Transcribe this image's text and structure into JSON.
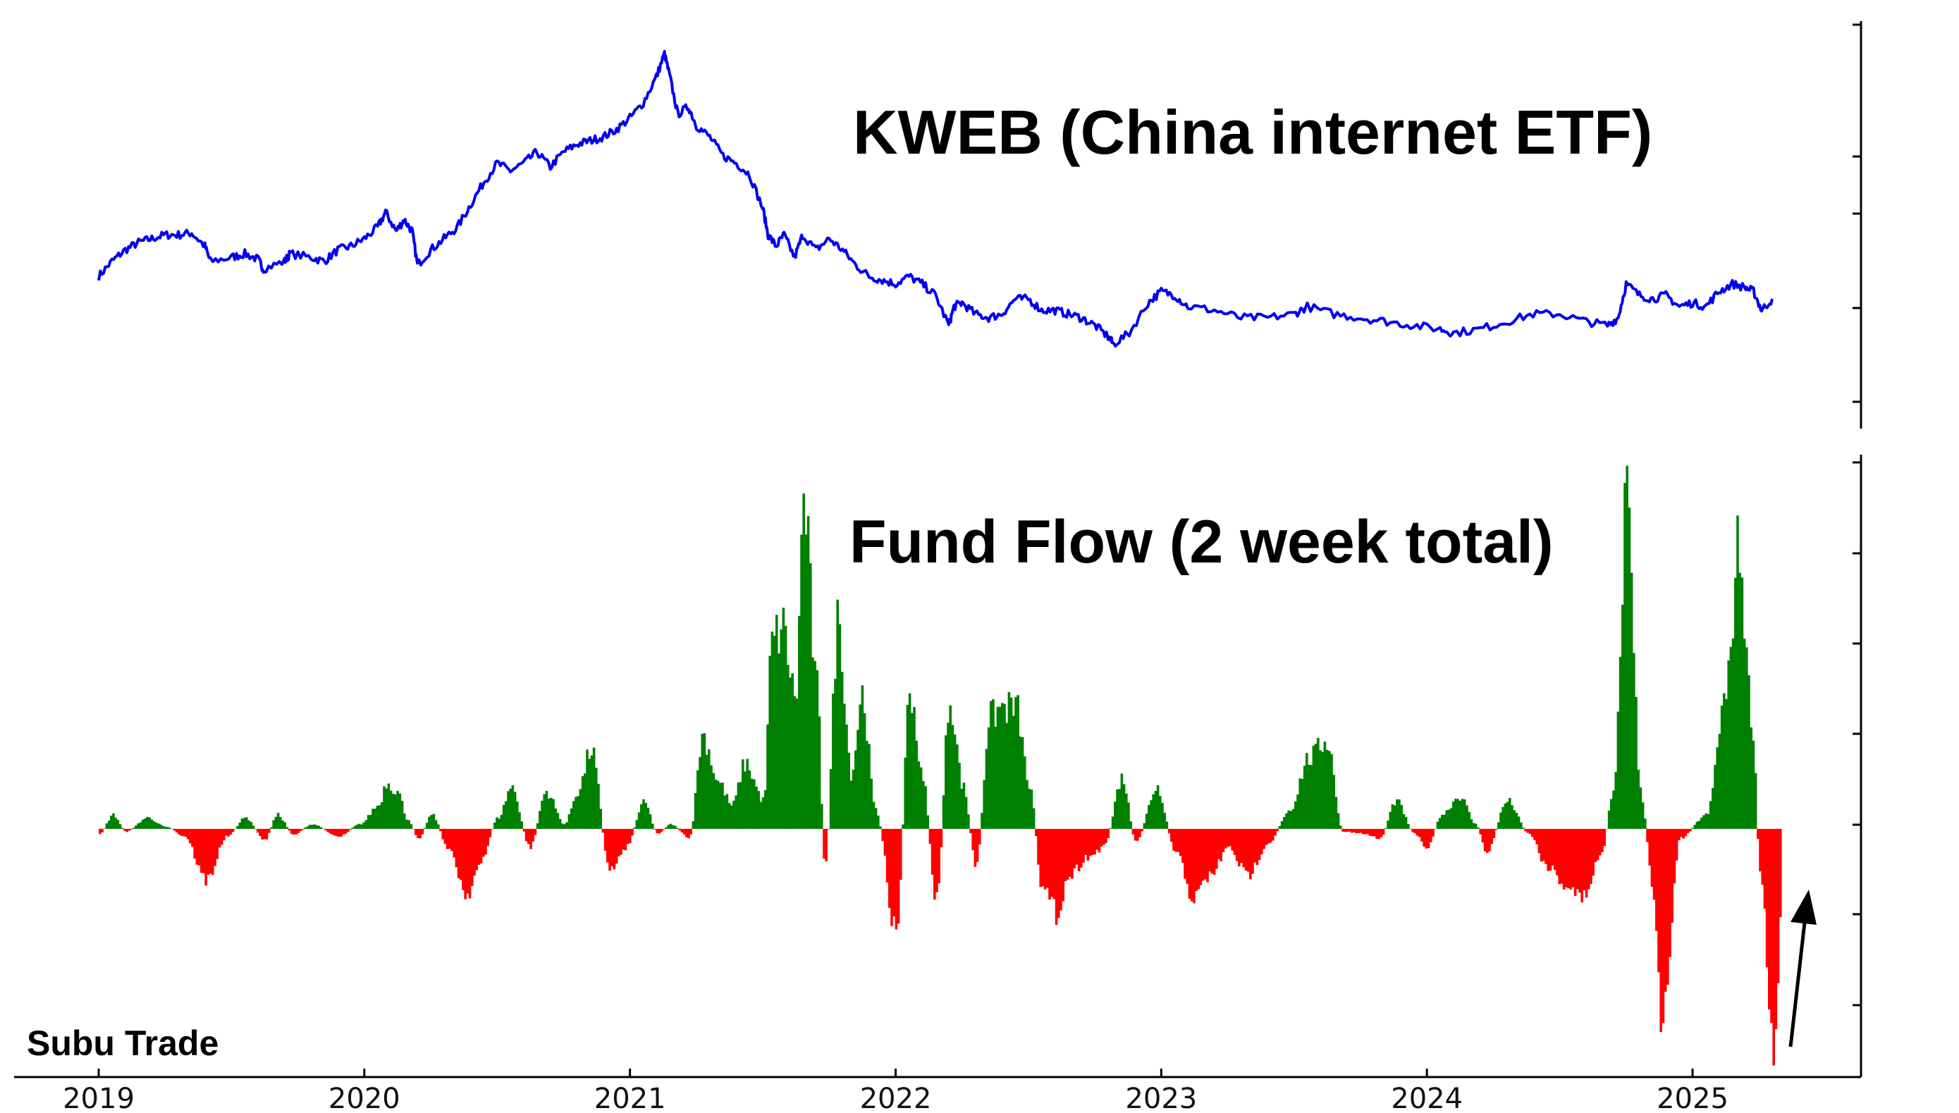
{
  "chart_data": [
    {
      "type": "line",
      "title": "KWEB (China internet ETF)",
      "series_color": "#0000ee",
      "x_axis_labels": [
        "2019",
        "2020",
        "2021",
        "2022",
        "2023",
        "2024",
        "2025"
      ],
      "x_range": [
        2019.0,
        2025.8
      ],
      "y_range": [
        0,
        100
      ],
      "y_ticks_labeled": false,
      "points": [
        [
          2019.0,
          37
        ],
        [
          2019.05,
          41
        ],
        [
          2019.1,
          44
        ],
        [
          2019.15,
          46
        ],
        [
          2019.2,
          47
        ],
        [
          2019.25,
          48
        ],
        [
          2019.3,
          48
        ],
        [
          2019.35,
          48.5
        ],
        [
          2019.4,
          45
        ],
        [
          2019.42,
          41
        ],
        [
          2019.5,
          42
        ],
        [
          2019.55,
          43
        ],
        [
          2019.6,
          41.5
        ],
        [
          2019.62,
          39
        ],
        [
          2019.7,
          41
        ],
        [
          2019.72,
          43
        ],
        [
          2019.8,
          42
        ],
        [
          2019.85,
          41
        ],
        [
          2019.9,
          44
        ],
        [
          2019.95,
          45
        ],
        [
          2020.0,
          47
        ],
        [
          2020.05,
          50
        ],
        [
          2020.08,
          54
        ],
        [
          2020.12,
          49
        ],
        [
          2020.15,
          52
        ],
        [
          2020.18,
          49
        ],
        [
          2020.2,
          40
        ],
        [
          2020.25,
          44
        ],
        [
          2020.3,
          47
        ],
        [
          2020.35,
          50
        ],
        [
          2020.4,
          56
        ],
        [
          2020.45,
          62
        ],
        [
          2020.5,
          67
        ],
        [
          2020.55,
          65
        ],
        [
          2020.6,
          67
        ],
        [
          2020.65,
          70
        ],
        [
          2020.7,
          66
        ],
        [
          2020.75,
          70
        ],
        [
          2020.8,
          72
        ],
        [
          2020.85,
          73
        ],
        [
          2020.9,
          74
        ],
        [
          2020.95,
          76
        ],
        [
          2021.0,
          79
        ],
        [
          2021.05,
          83
        ],
        [
          2021.1,
          90
        ],
        [
          2021.13,
          96
        ],
        [
          2021.15,
          90
        ],
        [
          2021.18,
          80
        ],
        [
          2021.22,
          82
        ],
        [
          2021.25,
          77
        ],
        [
          2021.3,
          74
        ],
        [
          2021.35,
          69
        ],
        [
          2021.4,
          67
        ],
        [
          2021.45,
          64
        ],
        [
          2021.5,
          55
        ],
        [
          2021.52,
          48
        ],
        [
          2021.55,
          45
        ],
        [
          2021.58,
          48
        ],
        [
          2021.62,
          42
        ],
        [
          2021.65,
          48
        ],
        [
          2021.7,
          44
        ],
        [
          2021.75,
          47
        ],
        [
          2021.8,
          44
        ],
        [
          2021.85,
          40
        ],
        [
          2021.9,
          37
        ],
        [
          2021.95,
          36
        ],
        [
          2022.0,
          35
        ],
        [
          2022.05,
          37
        ],
        [
          2022.1,
          35
        ],
        [
          2022.15,
          32
        ],
        [
          2022.2,
          24
        ],
        [
          2022.22,
          29
        ],
        [
          2022.25,
          30
        ],
        [
          2022.3,
          27
        ],
        [
          2022.35,
          26
        ],
        [
          2022.4,
          27
        ],
        [
          2022.45,
          31
        ],
        [
          2022.5,
          31
        ],
        [
          2022.55,
          28
        ],
        [
          2022.6,
          28
        ],
        [
          2022.65,
          27
        ],
        [
          2022.7,
          26
        ],
        [
          2022.75,
          24
        ],
        [
          2022.8,
          21
        ],
        [
          2022.82,
          19
        ],
        [
          2022.88,
          22
        ],
        [
          2022.95,
          30
        ],
        [
          2023.0,
          33
        ],
        [
          2023.05,
          32
        ],
        [
          2023.1,
          29
        ],
        [
          2023.2,
          28
        ],
        [
          2023.3,
          26
        ],
        [
          2023.4,
          26
        ],
        [
          2023.5,
          27
        ],
        [
          2023.55,
          29
        ],
        [
          2023.65,
          27
        ],
        [
          2023.75,
          26
        ],
        [
          2023.85,
          25
        ],
        [
          2023.95,
          24
        ],
        [
          2024.05,
          23
        ],
        [
          2024.1,
          22
        ],
        [
          2024.2,
          23
        ],
        [
          2024.3,
          25
        ],
        [
          2024.4,
          27
        ],
        [
          2024.5,
          27
        ],
        [
          2024.6,
          25
        ],
        [
          2024.68,
          24
        ],
        [
          2024.72,
          26
        ],
        [
          2024.75,
          35
        ],
        [
          2024.8,
          32
        ],
        [
          2024.85,
          31
        ],
        [
          2024.9,
          32
        ],
        [
          2024.95,
          29
        ],
        [
          2025.0,
          30
        ],
        [
          2025.05,
          29
        ],
        [
          2025.1,
          33
        ],
        [
          2025.15,
          35
        ],
        [
          2025.2,
          34
        ],
        [
          2025.23,
          33
        ],
        [
          2025.26,
          28
        ],
        [
          2025.3,
          31
        ]
      ]
    },
    {
      "type": "bar",
      "title": "Fund Flow (2 week total)",
      "positive_color": "#008000",
      "negative_color": "#ff0000",
      "x_range": [
        2019.0,
        2025.8
      ],
      "y_range": [
        -245,
        390
      ],
      "y_ticks_labeled": false,
      "keypoints": [
        [
          2019.0,
          -5
        ],
        [
          2019.05,
          15
        ],
        [
          2019.1,
          -3
        ],
        [
          2019.18,
          12
        ],
        [
          2019.25,
          2
        ],
        [
          2019.32,
          -8
        ],
        [
          2019.4,
          -55
        ],
        [
          2019.48,
          -8
        ],
        [
          2019.55,
          12
        ],
        [
          2019.62,
          -12
        ],
        [
          2019.67,
          15
        ],
        [
          2019.73,
          -6
        ],
        [
          2019.8,
          5
        ],
        [
          2019.9,
          -8
        ],
        [
          2019.98,
          5
        ],
        [
          2020.05,
          25
        ],
        [
          2020.08,
          50
        ],
        [
          2020.12,
          40
        ],
        [
          2020.16,
          10
        ],
        [
          2020.2,
          -10
        ],
        [
          2020.25,
          15
        ],
        [
          2020.32,
          -25
        ],
        [
          2020.38,
          -70
        ],
        [
          2020.43,
          -40
        ],
        [
          2020.5,
          12
        ],
        [
          2020.55,
          45
        ],
        [
          2020.62,
          -20
        ],
        [
          2020.68,
          40
        ],
        [
          2020.75,
          5
        ],
        [
          2020.8,
          40
        ],
        [
          2020.85,
          85
        ],
        [
          2020.92,
          -45
        ],
        [
          2020.98,
          -20
        ],
        [
          2021.05,
          28
        ],
        [
          2021.1,
          -5
        ],
        [
          2021.15,
          5
        ],
        [
          2021.22,
          -10
        ],
        [
          2021.27,
          100
        ],
        [
          2021.33,
          50
        ],
        [
          2021.38,
          25
        ],
        [
          2021.43,
          70
        ],
        [
          2021.5,
          30
        ],
        [
          2021.53,
          200
        ],
        [
          2021.57,
          215
        ],
        [
          2021.62,
          140
        ],
        [
          2021.65,
          350
        ],
        [
          2021.7,
          150
        ],
        [
          2021.73,
          -45
        ],
        [
          2021.78,
          225
        ],
        [
          2021.83,
          60
        ],
        [
          2021.87,
          145
        ],
        [
          2021.92,
          20
        ],
        [
          2022.0,
          -110
        ],
        [
          2022.05,
          150
        ],
        [
          2022.1,
          50
        ],
        [
          2022.15,
          -80
        ],
        [
          2022.2,
          140
        ],
        [
          2022.25,
          45
        ],
        [
          2022.3,
          -40
        ],
        [
          2022.35,
          120
        ],
        [
          2022.4,
          130
        ],
        [
          2022.45,
          130
        ],
        [
          2022.5,
          45
        ],
        [
          2022.55,
          -65
        ],
        [
          2022.6,
          -90
        ],
        [
          2022.65,
          -50
        ],
        [
          2022.72,
          -30
        ],
        [
          2022.78,
          -20
        ],
        [
          2022.85,
          55
        ],
        [
          2022.9,
          -15
        ],
        [
          2022.98,
          45
        ],
        [
          2023.05,
          -25
        ],
        [
          2023.12,
          -75
        ],
        [
          2023.18,
          -50
        ],
        [
          2023.25,
          -20
        ],
        [
          2023.32,
          -50
        ],
        [
          2023.4,
          -15
        ],
        [
          2023.48,
          20
        ],
        [
          2023.55,
          75
        ],
        [
          2023.62,
          95
        ],
        [
          2023.68,
          -3
        ],
        [
          2023.75,
          -5
        ],
        [
          2023.82,
          -10
        ],
        [
          2023.88,
          30
        ],
        [
          2023.95,
          -5
        ],
        [
          2024.0,
          -20
        ],
        [
          2024.05,
          15
        ],
        [
          2024.12,
          35
        ],
        [
          2024.18,
          5
        ],
        [
          2024.22,
          -25
        ],
        [
          2024.3,
          30
        ],
        [
          2024.38,
          -5
        ],
        [
          2024.45,
          -40
        ],
        [
          2024.52,
          -60
        ],
        [
          2024.58,
          -75
        ],
        [
          2024.65,
          -30
        ],
        [
          2024.7,
          40
        ],
        [
          2024.75,
          370
        ],
        [
          2024.8,
          40
        ],
        [
          2024.85,
          -70
        ],
        [
          2024.88,
          -200
        ],
        [
          2024.95,
          -10
        ],
        [
          2025.05,
          15
        ],
        [
          2025.12,
          140
        ],
        [
          2025.17,
          300
        ],
        [
          2025.22,
          120
        ],
        [
          2025.25,
          -45
        ],
        [
          2025.3,
          -240
        ],
        [
          2025.33,
          -100
        ]
      ]
    }
  ],
  "watermark": "Subu Trade",
  "annotation": "arrow-up"
}
